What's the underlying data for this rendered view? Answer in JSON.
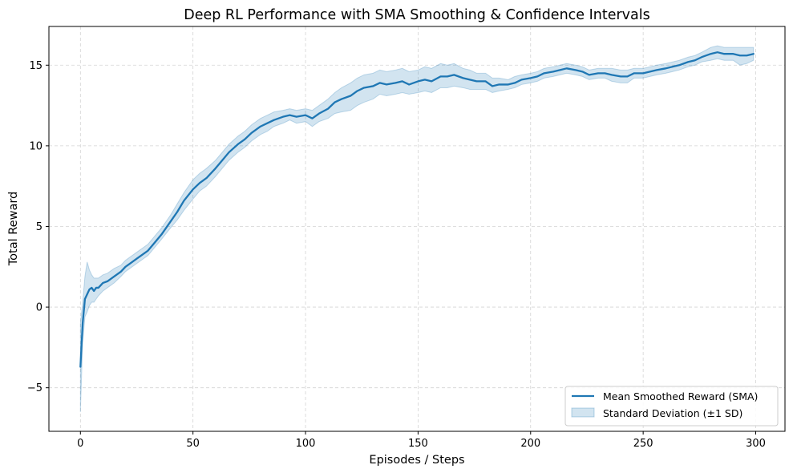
{
  "chart_data": {
    "type": "line",
    "title": "Deep RL Performance with SMA Smoothing & Confidence Intervals",
    "xlabel": "Episodes / Steps",
    "ylabel": "Total Reward",
    "xlim": [
      -14,
      313
    ],
    "ylim": [
      -7.7,
      17.4
    ],
    "xticks": [
      0,
      50,
      100,
      150,
      200,
      250,
      300
    ],
    "yticks": [
      -5,
      0,
      5,
      10,
      15
    ],
    "ytick_labels": [
      "−5",
      "0",
      "5",
      "10",
      "15"
    ],
    "grid": true,
    "legend_position": "bottom-right",
    "series": [
      {
        "name": "Mean Smoothed Reward (SMA)",
        "kind": "line",
        "color": "#1f77b4",
        "x": [
          0,
          1,
          2,
          3,
          4,
          5,
          6,
          7,
          8,
          10,
          12,
          15,
          18,
          20,
          22,
          25,
          28,
          30,
          33,
          36,
          40,
          43,
          46,
          50,
          53,
          56,
          60,
          63,
          66,
          70,
          73,
          76,
          80,
          83,
          86,
          90,
          93,
          96,
          100,
          103,
          106,
          110,
          113,
          116,
          120,
          123,
          126,
          130,
          133,
          136,
          140,
          143,
          146,
          150,
          153,
          156,
          160,
          163,
          166,
          170,
          173,
          176,
          180,
          183,
          186,
          190,
          193,
          196,
          200,
          203,
          206,
          210,
          213,
          216,
          220,
          223,
          226,
          230,
          233,
          236,
          240,
          243,
          246,
          250,
          253,
          256,
          260,
          263,
          266,
          270,
          273,
          276,
          280,
          283,
          286,
          290,
          293,
          296,
          299
        ],
        "values": [
          -3.7,
          -1.0,
          0.5,
          0.8,
          1.1,
          1.2,
          1.0,
          1.2,
          1.2,
          1.5,
          1.6,
          1.9,
          2.2,
          2.5,
          2.7,
          3.0,
          3.3,
          3.5,
          4.0,
          4.5,
          5.3,
          5.9,
          6.6,
          7.3,
          7.7,
          8.0,
          8.6,
          9.1,
          9.6,
          10.1,
          10.4,
          10.8,
          11.2,
          11.4,
          11.6,
          11.8,
          11.9,
          11.8,
          11.9,
          11.7,
          12.0,
          12.3,
          12.7,
          12.9,
          13.1,
          13.4,
          13.6,
          13.7,
          13.9,
          13.8,
          13.9,
          14.0,
          13.8,
          14.0,
          14.1,
          14.0,
          14.3,
          14.3,
          14.4,
          14.2,
          14.1,
          14.0,
          14.0,
          13.7,
          13.8,
          13.8,
          13.9,
          14.1,
          14.2,
          14.3,
          14.5,
          14.6,
          14.7,
          14.8,
          14.7,
          14.6,
          14.4,
          14.5,
          14.5,
          14.4,
          14.3,
          14.3,
          14.5,
          14.5,
          14.6,
          14.7,
          14.8,
          14.9,
          15.0,
          15.2,
          15.3,
          15.5,
          15.7,
          15.8,
          15.7,
          15.7,
          15.6,
          15.6,
          15.7
        ]
      },
      {
        "name": "Standard Deviation (±1 SD)",
        "kind": "band",
        "color": "#1f77b4",
        "x": [
          0,
          1,
          2,
          3,
          4,
          5,
          6,
          7,
          8,
          10,
          12,
          15,
          18,
          20,
          22,
          25,
          28,
          30,
          33,
          36,
          40,
          43,
          46,
          50,
          53,
          56,
          60,
          63,
          66,
          70,
          73,
          76,
          80,
          83,
          86,
          90,
          93,
          96,
          100,
          103,
          106,
          110,
          113,
          116,
          120,
          123,
          126,
          130,
          133,
          136,
          140,
          143,
          146,
          150,
          153,
          156,
          160,
          163,
          166,
          170,
          173,
          176,
          180,
          183,
          186,
          190,
          193,
          196,
          200,
          203,
          206,
          210,
          213,
          216,
          220,
          223,
          226,
          230,
          233,
          236,
          240,
          243,
          246,
          250,
          253,
          256,
          260,
          263,
          266,
          270,
          273,
          276,
          280,
          283,
          286,
          290,
          293,
          296,
          299
        ],
        "lower": [
          -6.5,
          -2.2,
          -0.6,
          -0.3,
          0.1,
          0.3,
          0.3,
          0.5,
          0.7,
          1.0,
          1.2,
          1.5,
          1.9,
          2.2,
          2.4,
          2.7,
          3.0,
          3.2,
          3.7,
          4.2,
          4.9,
          5.4,
          6.0,
          6.7,
          7.2,
          7.5,
          8.1,
          8.6,
          9.1,
          9.6,
          9.9,
          10.3,
          10.7,
          10.9,
          11.2,
          11.4,
          11.6,
          11.4,
          11.5,
          11.2,
          11.5,
          11.7,
          12.0,
          12.1,
          12.2,
          12.5,
          12.7,
          12.9,
          13.2,
          13.1,
          13.2,
          13.3,
          13.2,
          13.3,
          13.4,
          13.3,
          13.6,
          13.6,
          13.7,
          13.6,
          13.5,
          13.5,
          13.5,
          13.3,
          13.4,
          13.5,
          13.6,
          13.8,
          13.9,
          14.0,
          14.2,
          14.3,
          14.4,
          14.5,
          14.4,
          14.3,
          14.1,
          14.2,
          14.2,
          14.0,
          13.9,
          13.9,
          14.2,
          14.2,
          14.3,
          14.4,
          14.5,
          14.6,
          14.7,
          14.9,
          15.0,
          15.2,
          15.3,
          15.4,
          15.3,
          15.3,
          15.0,
          15.1,
          15.3
        ],
        "upper": [
          -1.0,
          0.3,
          1.9,
          2.8,
          2.3,
          2.0,
          1.8,
          1.8,
          1.8,
          2.0,
          2.1,
          2.4,
          2.6,
          2.9,
          3.1,
          3.4,
          3.7,
          3.9,
          4.4,
          4.9,
          5.7,
          6.4,
          7.1,
          7.9,
          8.3,
          8.6,
          9.1,
          9.6,
          10.1,
          10.6,
          10.9,
          11.3,
          11.7,
          11.9,
          12.1,
          12.2,
          12.3,
          12.2,
          12.3,
          12.2,
          12.5,
          12.9,
          13.3,
          13.6,
          13.9,
          14.2,
          14.4,
          14.5,
          14.7,
          14.6,
          14.7,
          14.8,
          14.6,
          14.7,
          14.9,
          14.8,
          15.1,
          15.0,
          15.1,
          14.8,
          14.7,
          14.5,
          14.5,
          14.2,
          14.2,
          14.1,
          14.3,
          14.4,
          14.5,
          14.6,
          14.8,
          14.9,
          15.0,
          15.1,
          15.0,
          14.9,
          14.7,
          14.8,
          14.8,
          14.8,
          14.7,
          14.7,
          14.8,
          14.8,
          14.9,
          15.0,
          15.1,
          15.2,
          15.3,
          15.5,
          15.6,
          15.8,
          16.1,
          16.2,
          16.1,
          16.1,
          16.1,
          16.1,
          16.1
        ]
      }
    ]
  }
}
